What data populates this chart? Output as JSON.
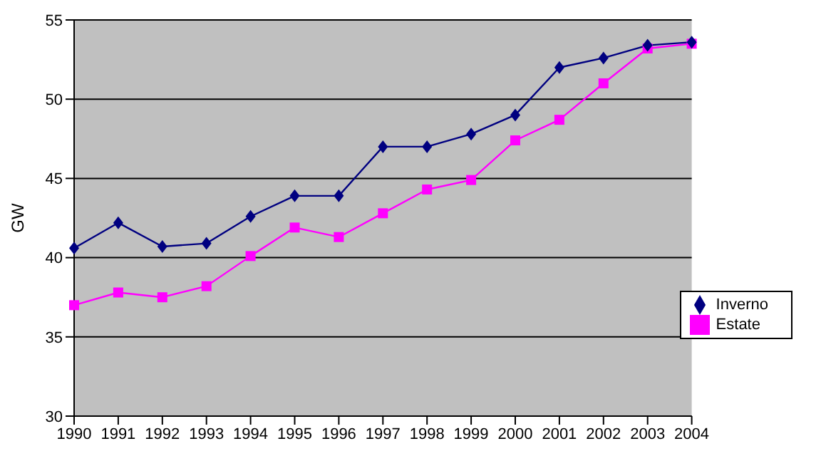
{
  "chart_data": {
    "type": "line",
    "ylabel": "GW",
    "categories": [
      "1990",
      "1991",
      "1992",
      "1993",
      "1994",
      "1995",
      "1996",
      "1997",
      "1998",
      "1999",
      "2000",
      "2001",
      "2002",
      "2003",
      "2004"
    ],
    "series": [
      {
        "name": "Inverno",
        "color": "#000080",
        "marker": "diamond",
        "values": [
          40.6,
          42.2,
          40.7,
          40.9,
          42.6,
          43.9,
          43.9,
          47.0,
          47.0,
          47.8,
          49.0,
          52.0,
          52.6,
          53.4,
          53.6
        ]
      },
      {
        "name": "Estate",
        "color": "#ff00ff",
        "marker": "square",
        "values": [
          37.0,
          37.8,
          37.5,
          38.2,
          40.1,
          41.9,
          41.3,
          42.8,
          44.3,
          44.9,
          47.4,
          48.7,
          51.0,
          53.2,
          53.5
        ]
      }
    ],
    "ylim": [
      30,
      55
    ],
    "yticks": [
      30,
      35,
      40,
      45,
      50,
      55
    ],
    "grid": "y",
    "legend": "bottom right"
  }
}
